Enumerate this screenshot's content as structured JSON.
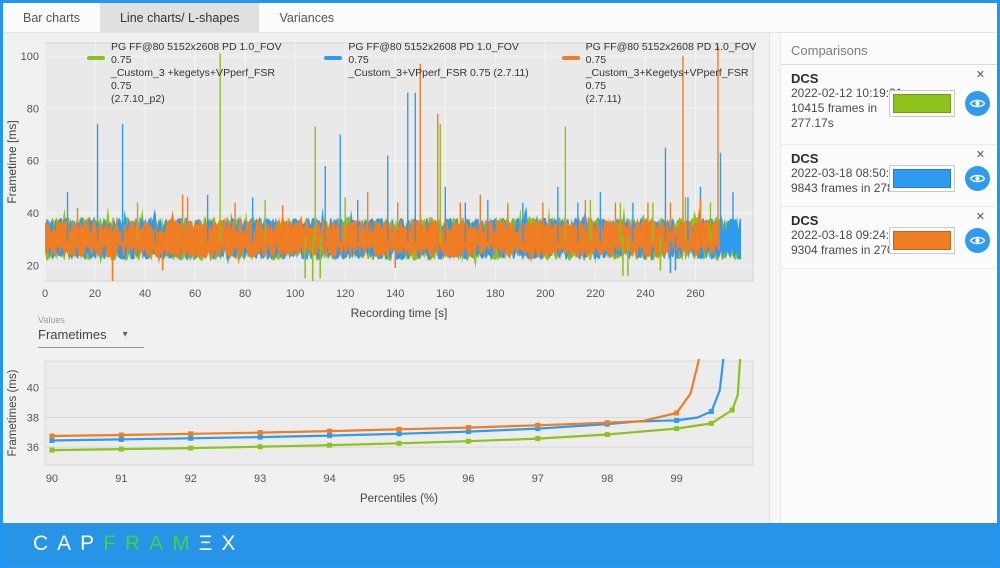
{
  "tabs": [
    {
      "label": "Bar charts",
      "active": false
    },
    {
      "label": "Line charts/ L-shapes",
      "active": true
    },
    {
      "label": "Variances",
      "active": false
    }
  ],
  "values_dropdown": {
    "label": "Values",
    "selected": "Frametimes",
    "caret": "▾"
  },
  "sidebar": {
    "title": "Comparisons",
    "close_glyph": "✕",
    "cards": [
      {
        "title": "DCS",
        "lines": [
          "2022-02-12 10:19:31",
          "10415 frames in",
          "277.17s"
        ],
        "color": "#8dc21d"
      },
      {
        "title": "DCS",
        "lines": [
          "2022-03-18 08:50:10",
          "9843 frames in 278.62s"
        ],
        "color": "#2e9bf0"
      },
      {
        "title": "DCS",
        "lines": [
          "2022-03-18 09:24:00",
          "9304 frames in 270s"
        ],
        "color": "#ee7d23"
      }
    ]
  },
  "logo": {
    "segments": [
      {
        "text": "CAP",
        "color": "#ffffff"
      },
      {
        "text": "FRAM",
        "color": "#42d142"
      },
      {
        "text": "Ξ",
        "color": "#ffffff"
      },
      {
        "text": "X",
        "color": "#ffffff"
      }
    ]
  },
  "chart_data": [
    {
      "type": "line",
      "title": "",
      "xlabel": "Recording time [s]",
      "ylabel": "Frametime [ms]",
      "xlim": [
        0,
        283
      ],
      "ylim": [
        14,
        105
      ],
      "xticks": [
        0,
        20,
        40,
        60,
        80,
        100,
        120,
        140,
        160,
        180,
        200,
        220,
        240,
        260
      ],
      "yticks": [
        20,
        40,
        60,
        80,
        100
      ],
      "grid": true,
      "legend_position": "top-inside",
      "series": [
        {
          "name": "PG FF@80 5152x2608 PD 1.0_FOV 0.75 _Custom_3 +kegetys+VPperf_FSR 0.75 (2.7.10_p2)",
          "legend_lines": [
            "PG FF@80 5152x2608 PD 1.0_FOV 0.75",
            "_Custom_3 +kegetys+VPperf_FSR 0.75",
            "(2.7.10_p2)"
          ],
          "color": "#8dc21d",
          "band": {
            "end": 277.17,
            "top": 38.4,
            "bottom": 21.8
          },
          "spikes": [
            [
              37,
              44
            ],
            [
              70,
              101
            ],
            [
              88,
              45
            ],
            [
              108,
              73
            ],
            [
              120,
              46
            ],
            [
              158,
              74
            ],
            [
              185,
              44
            ],
            [
              208,
              73
            ],
            [
              218,
              45
            ],
            [
              230,
              44
            ],
            [
              243,
              44
            ],
            [
              256,
              46
            ],
            [
              266,
              44
            ]
          ],
          "downspikes": [
            [
              104,
              15
            ],
            [
              107,
              14
            ],
            [
              110,
              15
            ],
            [
              231,
              16
            ],
            [
              233,
              16
            ],
            [
              246,
              18
            ]
          ]
        },
        {
          "name": "PG FF@80 5152x2608 PD 1.0_FOV 0.75 _Custom_3+VPperf_FSR 0.75 (2.7.11)",
          "legend_lines": [
            "PG FF@80 5152x2608 PD 1.0_FOV 0.75",
            "_Custom_3+VPperf_FSR 0.75 (2.7.11)"
          ],
          "color": "#2e9bf0",
          "band": {
            "end": 278.62,
            "top": 38.1,
            "bottom": 22.2
          },
          "spikes": [
            [
              9,
              48
            ],
            [
              21,
              74
            ],
            [
              31,
              74
            ],
            [
              44,
              40
            ],
            [
              65,
              47
            ],
            [
              83,
              46
            ],
            [
              112,
              58
            ],
            [
              118,
              70
            ],
            [
              125,
              45
            ],
            [
              137,
              62
            ],
            [
              145,
              86
            ],
            [
              148,
              86
            ],
            [
              160,
              50
            ],
            [
              168,
              44
            ],
            [
              177,
              45
            ],
            [
              191,
              44
            ],
            [
              205,
              50
            ],
            [
              213,
              44
            ],
            [
              222,
              48
            ],
            [
              235,
              44
            ],
            [
              248,
              65
            ],
            [
              257,
              46
            ],
            [
              262,
              50
            ],
            [
              270,
              63
            ],
            [
              275,
              48
            ]
          ],
          "downspikes": [
            [
              250,
              17
            ],
            [
              252,
              18
            ]
          ]
        },
        {
          "name": "PG FF@80 5152x2608 PD 1.0_FOV 0.75 _Custom_3+Kegetys+VPperf_FSR 0.75 (2.7.11)",
          "legend_lines": [
            "PG FF@80 5152x2608 PD 1.0_FOV 0.75",
            "_Custom_3+Kegetys+VPperf_FSR 0.75",
            "(2.7.11)"
          ],
          "color": "#ee7d23",
          "band": {
            "end": 270,
            "top": 37.4,
            "bottom": 23.0
          },
          "spikes": [
            [
              13,
              42
            ],
            [
              55,
              47
            ],
            [
              57,
              46
            ],
            [
              76,
              44
            ],
            [
              95,
              43
            ],
            [
              129,
              48
            ],
            [
              141,
              44
            ],
            [
              150,
              97
            ],
            [
              157,
              78
            ],
            [
              166,
              44
            ],
            [
              174,
              47
            ],
            [
              185,
              43
            ],
            [
              199,
              44
            ],
            [
              216,
              45
            ],
            [
              228,
              44
            ],
            [
              241,
              44
            ],
            [
              250,
              44
            ],
            [
              255,
              100
            ],
            [
              262,
              46
            ],
            [
              269,
              104
            ]
          ],
          "downspikes": [
            [
              27,
              13
            ],
            [
              47,
              18
            ],
            [
              140,
              19
            ]
          ]
        }
      ]
    },
    {
      "type": "line",
      "title": "",
      "xlabel": "Percentiles (%)",
      "ylabel": "Frametimes (ms)",
      "xlim": [
        89.9,
        100.1
      ],
      "ylim": [
        34.8,
        41.8
      ],
      "xticks": [
        90,
        91,
        92,
        93,
        94,
        95,
        96,
        97,
        98,
        99
      ],
      "yticks": [
        36,
        38,
        40
      ],
      "grid": true,
      "series": [
        {
          "name": "PG FF@80 5152x2608 PD 1.0_FOV 0.75 _Custom_3 +kegetys+VPperf_FSR 0.75 (2.7.10_p2)",
          "color": "#8dc21d",
          "x": [
            90,
            91,
            92,
            93,
            94,
            95,
            96,
            97,
            98,
            99,
            99.5,
            99.8,
            99.88,
            99.93
          ],
          "y": [
            35.8,
            35.87,
            35.94,
            36.03,
            36.13,
            36.26,
            36.4,
            36.58,
            36.85,
            37.25,
            37.6,
            38.5,
            39.5,
            43
          ],
          "markers": [
            [
              90,
              35.8
            ],
            [
              91,
              35.87
            ],
            [
              92,
              35.94
            ],
            [
              93,
              36.03
            ],
            [
              94,
              36.13
            ],
            [
              95,
              36.26
            ],
            [
              96,
              36.4
            ],
            [
              97,
              36.58
            ],
            [
              98,
              36.85
            ],
            [
              99,
              37.25
            ],
            [
              99.5,
              37.6
            ],
            [
              99.8,
              38.5
            ]
          ]
        },
        {
          "name": "PG FF@80 5152x2608 PD 1.0_FOV 0.75 _Custom_3+VPperf_FSR 0.75 (2.7.11)",
          "color": "#2e9bf0",
          "x": [
            90,
            91,
            92,
            93,
            94,
            95,
            96,
            97,
            98,
            98.4,
            98.8,
            99,
            99.3,
            99.5,
            99.62,
            99.7
          ],
          "y": [
            36.45,
            36.52,
            36.6,
            36.68,
            36.78,
            36.9,
            37.05,
            37.25,
            37.55,
            37.72,
            37.78,
            37.8,
            38.0,
            38.4,
            39.8,
            43
          ],
          "markers": [
            [
              90,
              36.45
            ],
            [
              91,
              36.52
            ],
            [
              92,
              36.6
            ],
            [
              93,
              36.68
            ],
            [
              94,
              36.78
            ],
            [
              95,
              36.9
            ],
            [
              96,
              37.05
            ],
            [
              97,
              37.25
            ],
            [
              98,
              37.55
            ],
            [
              99,
              37.8
            ],
            [
              99.5,
              38.4
            ]
          ]
        },
        {
          "name": "PG FF@80 5152x2608 PD 1.0_FOV 0.75 _Custom_3+Kegetys+VPperf_FSR 0.75 (2.7.11)",
          "color": "#ee7d23",
          "x": [
            90,
            91,
            92,
            93,
            94,
            95,
            96,
            97,
            98,
            98.5,
            99,
            99.2,
            99.3,
            99.37
          ],
          "y": [
            36.75,
            36.82,
            36.9,
            36.98,
            37.08,
            37.2,
            37.32,
            37.47,
            37.65,
            37.75,
            38.3,
            39.6,
            41.5,
            43
          ],
          "markers": [
            [
              90,
              36.75
            ],
            [
              91,
              36.82
            ],
            [
              92,
              36.9
            ],
            [
              93,
              36.98
            ],
            [
              94,
              37.08
            ],
            [
              95,
              37.2
            ],
            [
              96,
              37.32
            ],
            [
              97,
              37.47
            ],
            [
              98,
              37.65
            ],
            [
              99,
              38.3
            ]
          ]
        }
      ]
    }
  ]
}
